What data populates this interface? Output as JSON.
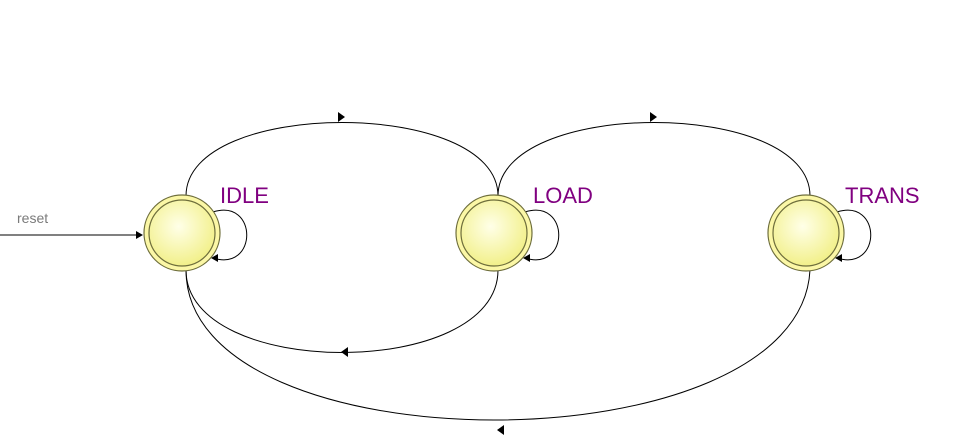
{
  "diagram": {
    "type": "state-machine",
    "reset_label": "reset",
    "states": [
      {
        "id": "idle",
        "label": "IDLE"
      },
      {
        "id": "load",
        "label": "LOAD"
      },
      {
        "id": "trans",
        "label": "TRANS"
      }
    ],
    "transitions": [
      {
        "from": "reset",
        "to": "IDLE"
      },
      {
        "from": "IDLE",
        "to": "IDLE"
      },
      {
        "from": "IDLE",
        "to": "LOAD"
      },
      {
        "from": "LOAD",
        "to": "LOAD"
      },
      {
        "from": "LOAD",
        "to": "IDLE"
      },
      {
        "from": "LOAD",
        "to": "TRANS"
      },
      {
        "from": "TRANS",
        "to": "TRANS"
      },
      {
        "from": "TRANS",
        "to": "IDLE"
      }
    ],
    "colors": {
      "state_fill_center": "#ffffe8",
      "state_fill_edge": "#f2f08a",
      "state_stroke": "#7a7a3c",
      "label_color": "#800080",
      "edge_color": "#000000"
    }
  }
}
